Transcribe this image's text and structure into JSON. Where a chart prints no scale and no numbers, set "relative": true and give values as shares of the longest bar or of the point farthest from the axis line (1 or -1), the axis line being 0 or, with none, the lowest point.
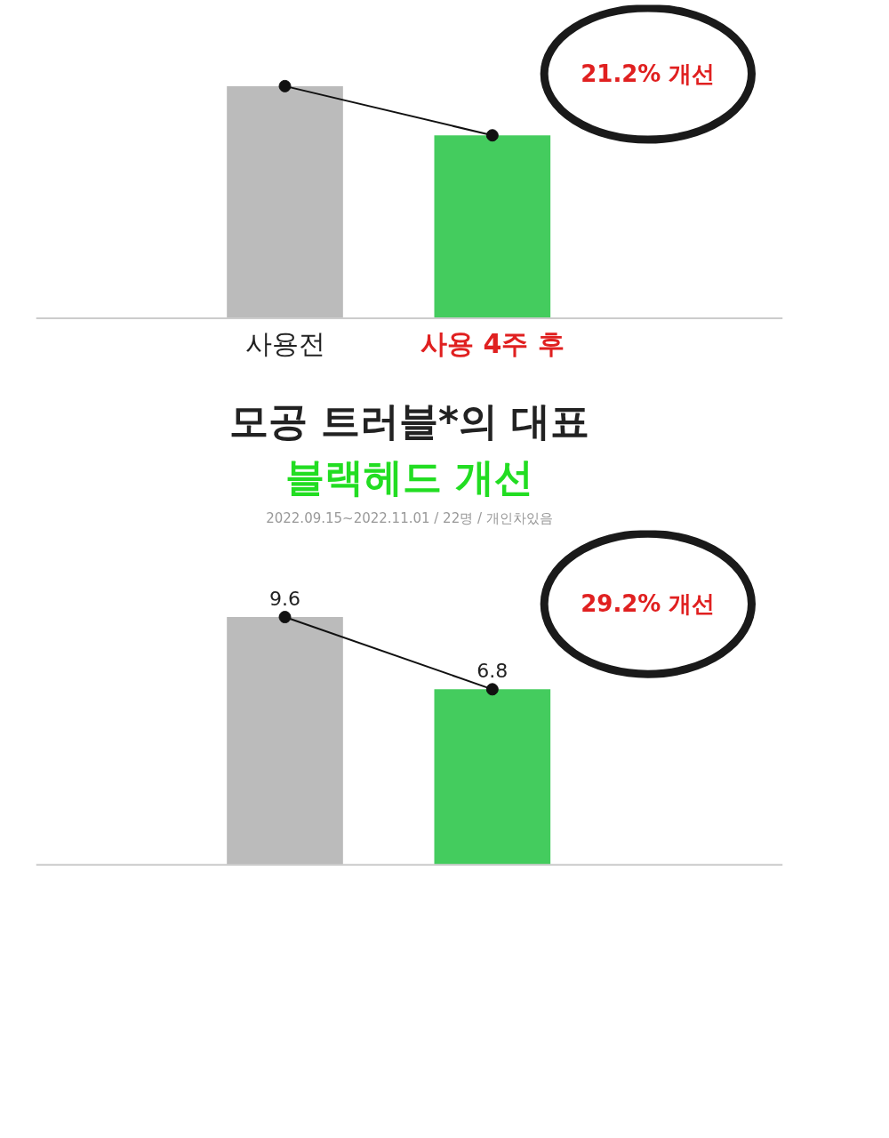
{
  "chart_data": [
    {
      "type": "bar",
      "categories": [
        "사용전",
        "사용 4주 후"
      ],
      "relative": true,
      "series": [
        {
          "colors": [
            "#bbbbbb",
            "#44cc5e"
          ],
          "values": [
            1,
            0.788
          ]
        },
        {
          "type": "line",
          "color": "#111111",
          "values": [
            1,
            0.788
          ]
        }
      ],
      "marker": "circle",
      "annotations": [
        "21.2% 개선"
      ]
    },
    {
      "type": "bar",
      "title": "모공 트러블*의 대표",
      "subtitle": "블랙헤드 개선",
      "categories": [
        null,
        null
      ],
      "series": [
        {
          "colors": [
            "#bbbbbb",
            "#44cc5e"
          ],
          "values": [
            9.6,
            6.8
          ]
        },
        {
          "type": "line",
          "color": "#111111",
          "values": [
            9.6,
            6.8
          ],
          "value_labels": [
            "9.6",
            "6.8"
          ]
        }
      ],
      "marker": "circle",
      "annotations": [
        "2022.09.15~2022.11.01 / 22명 / 개인차있음",
        "29.2% 개선"
      ]
    }
  ]
}
